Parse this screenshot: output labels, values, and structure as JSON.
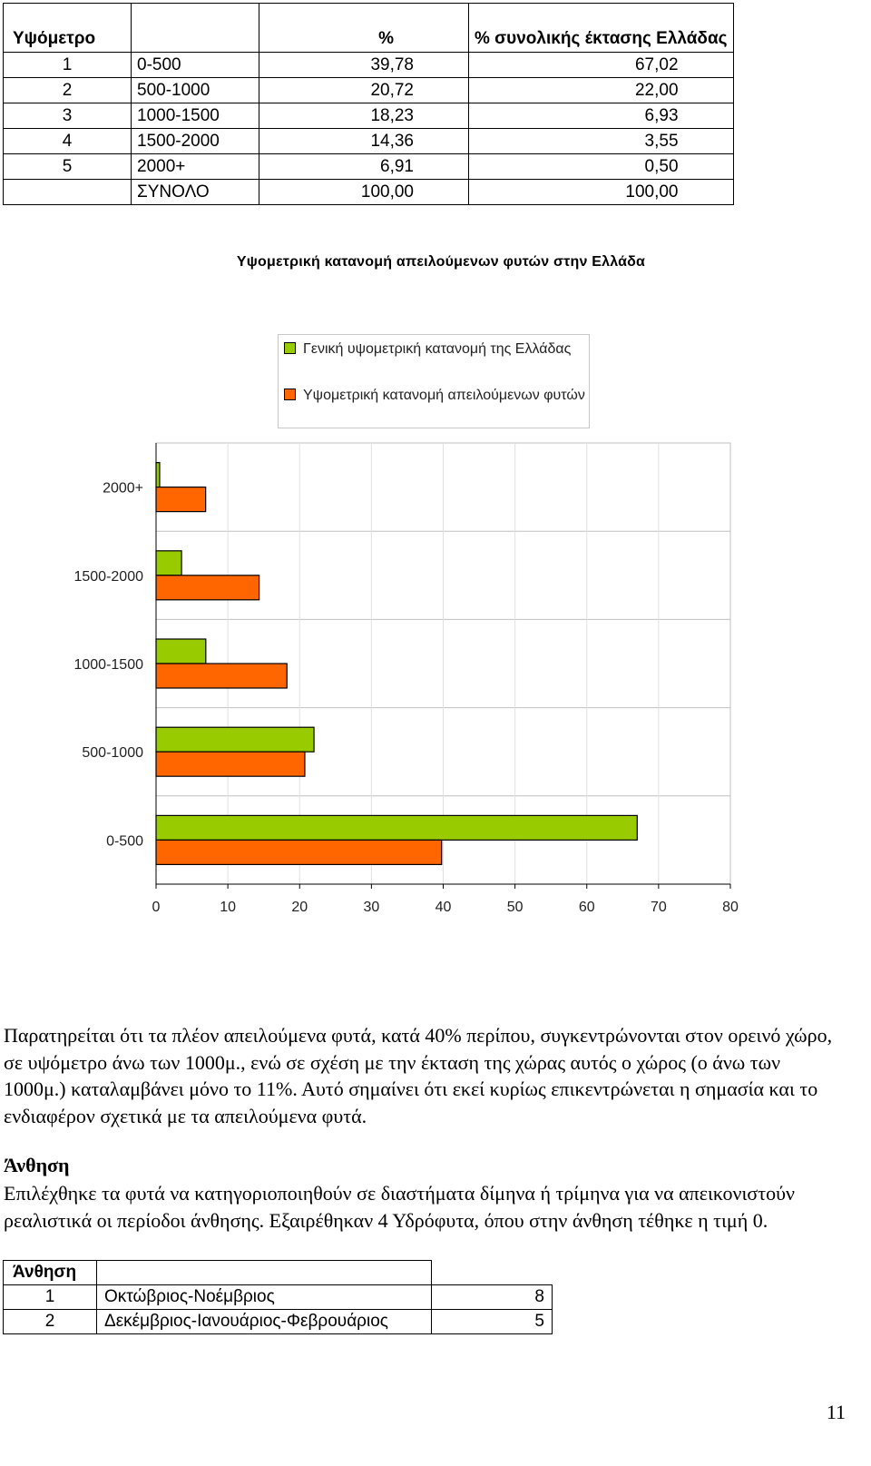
{
  "altitude_table": {
    "headers": [
      "Υψόμετρο",
      "",
      "%",
      "% συνολικής έκτασης Ελλάδας"
    ],
    "rows": [
      {
        "no": "1",
        "range": "0-500",
        "pct": "39,78",
        "pct_total": "67,02"
      },
      {
        "no": "2",
        "range": "500-1000",
        "pct": "20,72",
        "pct_total": "22,00"
      },
      {
        "no": "3",
        "range": "1000-1500",
        "pct": "18,23",
        "pct_total": "6,93"
      },
      {
        "no": "4",
        "range": "1500-2000",
        "pct": "14,36",
        "pct_total": "3,55"
      },
      {
        "no": "5",
        "range": "2000+",
        "pct": "6,91",
        "pct_total": "0,50"
      }
    ],
    "total": {
      "label": "ΣΥΝΟΛΟ",
      "pct": "100,00",
      "pct_total": "100,00"
    }
  },
  "chart_data": {
    "type": "bar",
    "orientation": "horizontal",
    "title": "Υψομετρική κατανομή απειλούμενων φυτών στην Ελλάδα",
    "categories": [
      "0-500",
      "500-1000",
      "1000-1500",
      "1500-2000",
      "2000+"
    ],
    "series": [
      {
        "name": "Γενική υψομετρική κατανομή της Ελλάδας",
        "values": [
          67.02,
          22.0,
          6.93,
          3.55,
          0.5
        ],
        "color": "#99cc00"
      },
      {
        "name": "Υψομετρική κατανομή απειλούμενων φυτών",
        "values": [
          39.78,
          20.72,
          18.23,
          14.36,
          6.91
        ],
        "color": "#ff6600"
      }
    ],
    "xlim": [
      0,
      80
    ],
    "xticks": [
      0,
      10,
      20,
      30,
      40,
      50,
      60,
      70,
      80
    ],
    "grid": true,
    "legend_position": "top"
  },
  "paragraphs": {
    "p1": "Παρατηρείται ότι τα πλέον απειλούμενα φυτά, κατά 40% περίπου, συγκεντρώνονται στον ορεινό χώρο, σε υψόμετρο άνω των 1000μ., ενώ σε σχέση με την έκταση της χώρας αυτός ο χώρος (ο άνω των 1000μ.) καταλαμβάνει μόνο το 11%. Αυτό σημαίνει ότι εκεί κυρίως επικεντρώνεται η σημασία και το ενδιαφέρον σχετικά με τα απειλούμενα φυτά.",
    "heading": "Άνθηση",
    "p2": "Επιλέχθηκε τα φυτά να κατηγοριοποιηθούν σε διαστήματα δίμηνα ή τρίμηνα για να απεικονιστούν  ρεαλιστικά οι περίοδοι άνθησης. Εξαιρέθηκαν 4 Υδρόφυτα, όπου στην άνθηση τέθηκε η τιμή 0."
  },
  "flowering_table": {
    "header": "Άνθηση",
    "rows": [
      {
        "no": "1",
        "period": "Οκτώβριος-Νοέμβριος",
        "count": "8"
      },
      {
        "no": "2",
        "period": "Δεκέμβριος-Ιανουάριος-Φεβρουάριος",
        "count": "5"
      }
    ]
  },
  "page_number": "11"
}
